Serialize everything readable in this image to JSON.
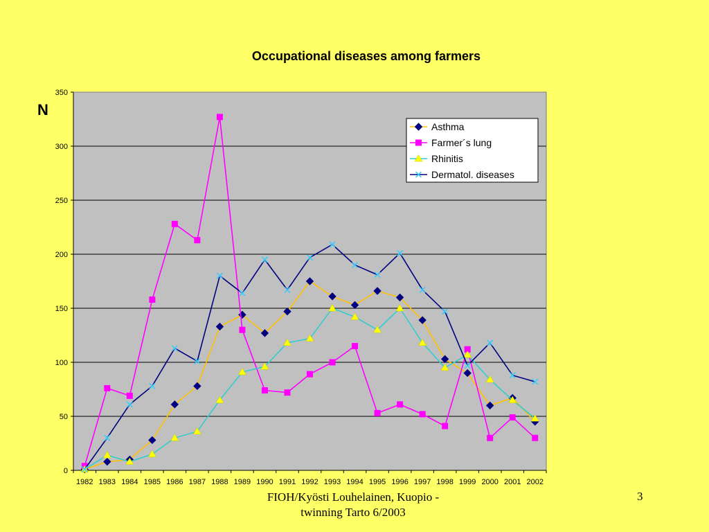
{
  "chart_data": {
    "type": "line",
    "title": "Occupational diseases among farmers",
    "ylabel": "N",
    "xlabel": "",
    "ylim": [
      0,
      350
    ],
    "yticks": [
      0,
      50,
      100,
      150,
      200,
      250,
      300,
      350
    ],
    "categories": [
      "1982",
      "1983",
      "1984",
      "1985",
      "1986",
      "1987",
      "1988",
      "1989",
      "1990",
      "1991",
      "1992",
      "1993",
      "1994",
      "1995",
      "1996",
      "1997",
      "1998",
      "1999",
      "2000",
      "2001",
      "2002"
    ],
    "grid": "horizontal",
    "legend_position": "top-right",
    "series": [
      {
        "name": "Asthma",
        "color": "#FFC000",
        "marker": "diamond",
        "marker_color": "#000080",
        "values": [
          1,
          8,
          10,
          28,
          61,
          78,
          133,
          144,
          127,
          147,
          175,
          161,
          153,
          166,
          160,
          139,
          103,
          90,
          60,
          67,
          45
        ]
      },
      {
        "name": "Farmer´s lung",
        "color": "#FF00FF",
        "marker": "square",
        "marker_color": "#FF00FF",
        "values": [
          4,
          76,
          69,
          158,
          228,
          213,
          327,
          130,
          74,
          72,
          89,
          100,
          115,
          53,
          61,
          52,
          41,
          112,
          30,
          49,
          30
        ]
      },
      {
        "name": "Rhinitis",
        "color": "#33CCCC",
        "marker": "triangle",
        "marker_color": "#FFFF00",
        "values": [
          1,
          14,
          8,
          15,
          30,
          36,
          65,
          91,
          96,
          118,
          122,
          150,
          142,
          130,
          150,
          118,
          95,
          107,
          84,
          65,
          48
        ]
      },
      {
        "name": "Dermatol. diseases",
        "color": "#000080",
        "marker": "x",
        "marker_color": "#33CCFF",
        "values": [
          1,
          30,
          61,
          78,
          113,
          101,
          180,
          164,
          195,
          167,
          197,
          209,
          190,
          181,
          201,
          167,
          147,
          97,
          118,
          88,
          82
        ]
      }
    ]
  },
  "footer": {
    "line1": "FIOH/Kyösti Louhelainen, Kuopio -",
    "line2": "twinning Tarto 6/2003"
  },
  "slide_number": "3"
}
